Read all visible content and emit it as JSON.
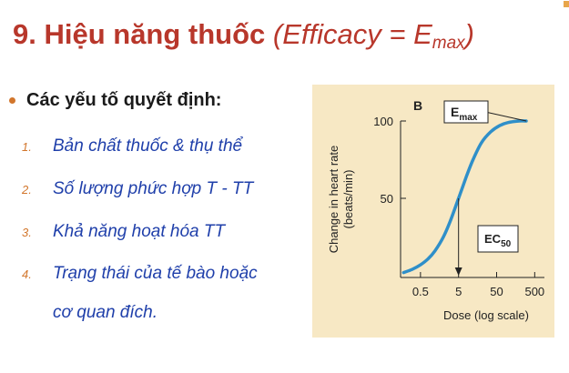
{
  "slide": {
    "title_main": "9. Hiệu năng thuốc ",
    "title_italic": "(Efficacy = E",
    "title_sub": "max",
    "title_close": ")"
  },
  "bullet": {
    "heading": "Các yếu tố quyết định:"
  },
  "list_items": [
    {
      "num": "1.",
      "text": "Bản chất thuốc & thụ thể"
    },
    {
      "num": "2.",
      "text": "Số lượng phức hợp T - TT"
    },
    {
      "num": "3.",
      "text": "Khả năng hoạt hóa TT"
    },
    {
      "num": "4.",
      "text": "Trạng thái của tế bào hoặc"
    }
  ],
  "list_continuation": "cơ quan đích.",
  "colors": {
    "title": "#b8372b",
    "accent_bullet": "#d2762c",
    "list_text": "#1f3faa",
    "figure_bg": "#f7e8c4",
    "curve": "#2f8fc9"
  },
  "chart_data": {
    "type": "line",
    "panel_label": "B",
    "xlabel": "Dose (log scale)",
    "ylabel": "Change in heart rate (beats/min)",
    "ylabel_line1": "Change in heart rate",
    "ylabel_line2": "(beats/min)",
    "x_scale": "log",
    "xticks": [
      {
        "label": "0.5",
        "value": 0.5
      },
      {
        "label": "5",
        "value": 5
      },
      {
        "label": "50",
        "value": 50
      },
      {
        "label": "500",
        "value": 500
      }
    ],
    "yticks": [
      {
        "label": "50",
        "value": 50
      },
      {
        "label": "100",
        "value": 100
      }
    ],
    "ylim": [
      0,
      100
    ],
    "series": [
      {
        "x": [
          0.18,
          0.3,
          0.5,
          0.8,
          1.2,
          2,
          3,
          5,
          8,
          12,
          20,
          35,
          60,
          100,
          200,
          300
        ],
        "y": [
          2,
          4,
          7,
          11,
          16,
          25,
          35,
          50,
          64,
          75,
          86,
          93,
          97,
          99,
          100,
          100
        ]
      }
    ],
    "annotations": [
      {
        "label": "E",
        "sub": "max",
        "x": 300,
        "y": 100
      },
      {
        "label": "EC",
        "sub": "50",
        "x": 5,
        "y": 50
      }
    ]
  }
}
